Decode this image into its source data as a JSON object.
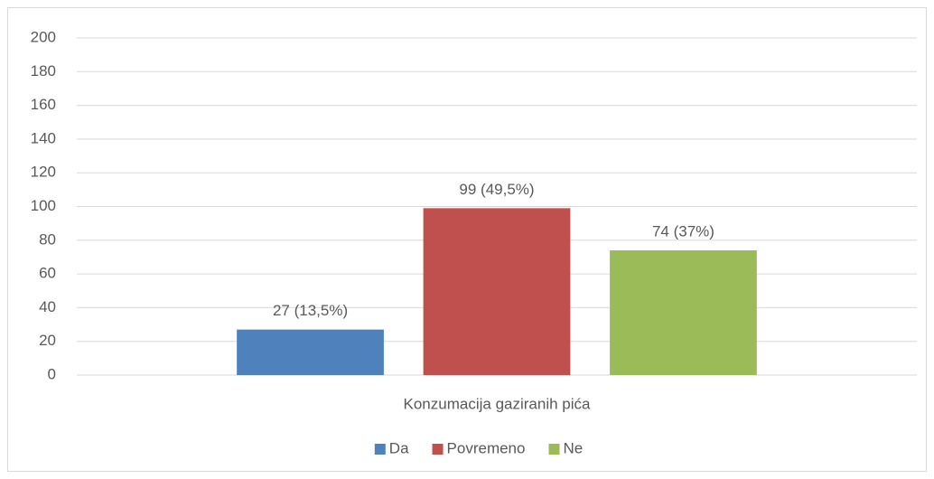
{
  "chart_data": {
    "type": "bar",
    "categories": [
      "Konzumacija gaziranih pića"
    ],
    "series": [
      {
        "name": "Da",
        "color": "#4f81bd",
        "values": [
          27
        ],
        "value_labels": [
          "27 (13,5%)"
        ]
      },
      {
        "name": "Povremeno",
        "color": "#c0504d",
        "values": [
          99
        ],
        "value_labels": [
          "99 (49,5%)"
        ]
      },
      {
        "name": "Ne",
        "color": "#9bbb59",
        "values": [
          74
        ],
        "value_labels": [
          "74 (37%)"
        ]
      }
    ],
    "ylim": [
      0,
      200
    ],
    "yticks": [
      0,
      20,
      40,
      60,
      80,
      100,
      120,
      140,
      160,
      180,
      200
    ],
    "grid": true,
    "legend": "bottom"
  }
}
